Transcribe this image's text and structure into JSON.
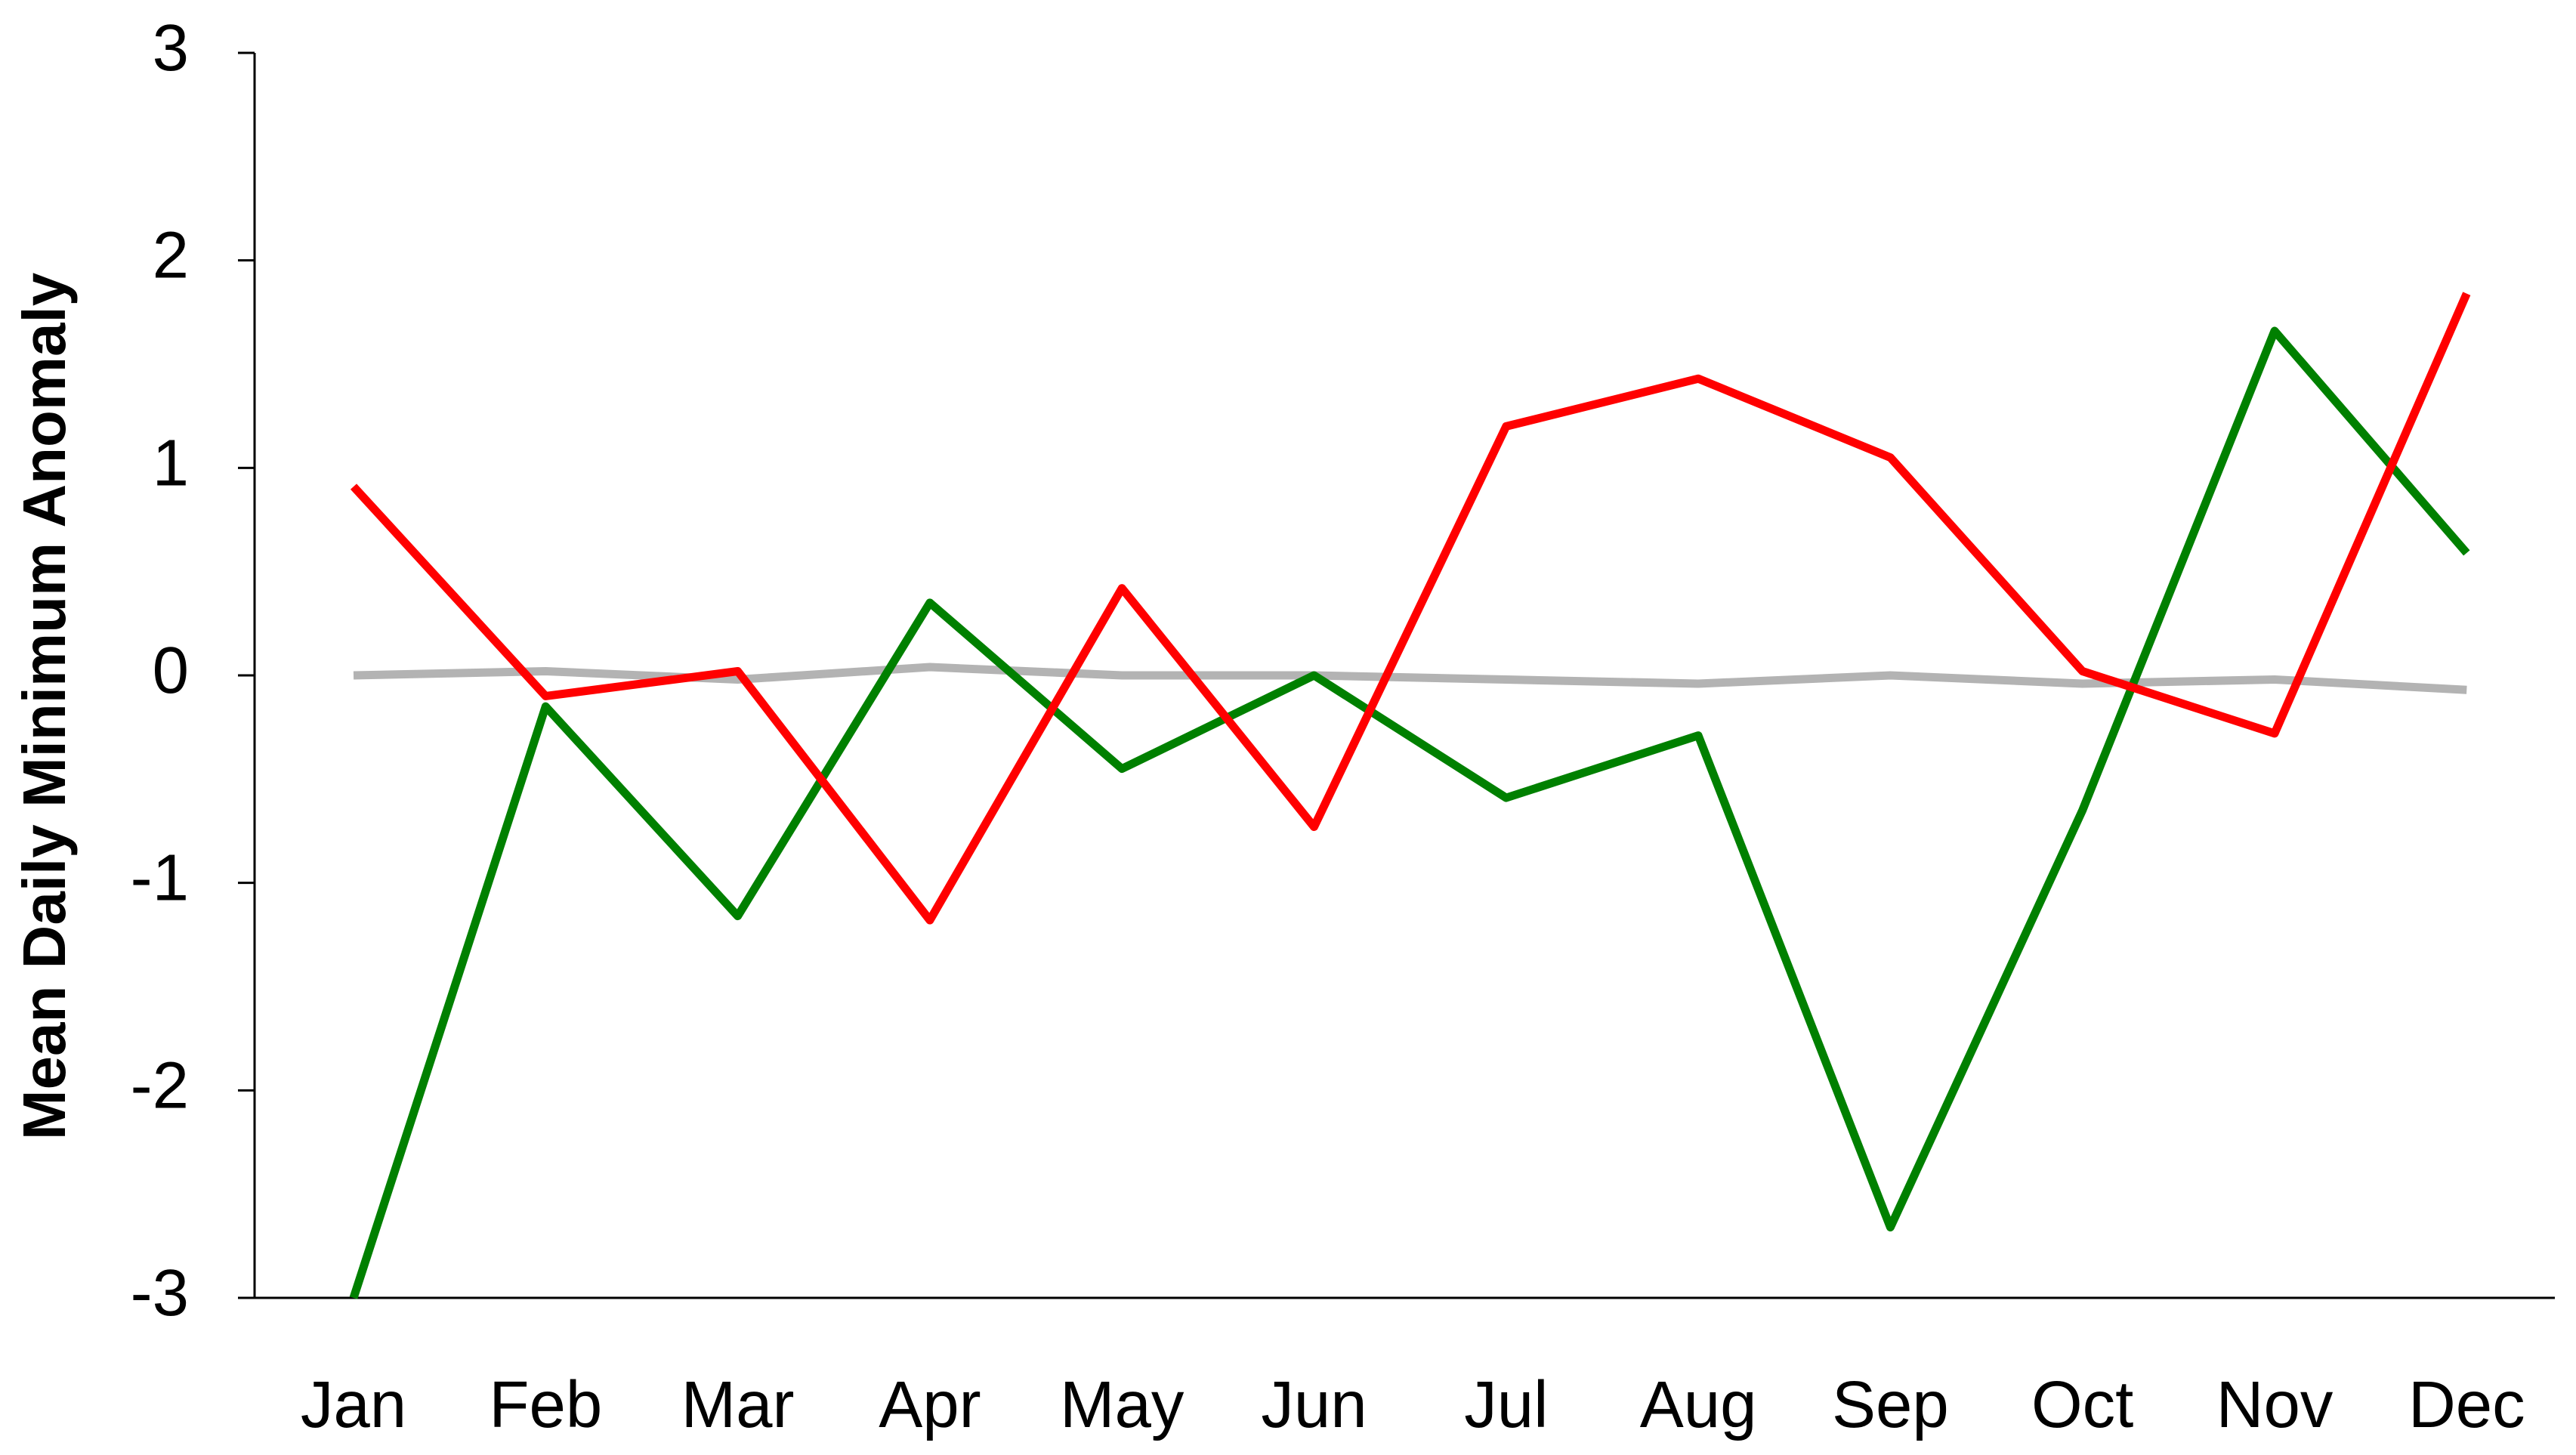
{
  "chart_data": {
    "type": "line",
    "y_label": "Mean Daily Minimum Anomaly",
    "categories": [
      "Jan",
      "Feb",
      "Mar",
      "Apr",
      "May",
      "Jun",
      "Jul",
      "Aug",
      "Sep",
      "Oct",
      "Nov",
      "Dec"
    ],
    "series": [
      {
        "color": "#b3b3b3",
        "values": [
          0,
          0.02,
          -0.02,
          0.04,
          0,
          0,
          -0.02,
          -0.04,
          0,
          -0.04,
          -0.02,
          -0.07
        ]
      },
      {
        "color": "#008000",
        "values": [
          -3.0,
          -0.15,
          -1.16,
          0.35,
          -0.45,
          0.0,
          -0.59,
          -0.29,
          -2.66,
          -0.65,
          1.66,
          0.59
        ]
      },
      {
        "color": "#ff0000",
        "values": [
          0.91,
          -0.1,
          0.02,
          -1.18,
          0.42,
          -0.73,
          1.2,
          1.43,
          1.05,
          0.02,
          -0.28,
          1.84
        ]
      }
    ],
    "ylim": [
      -3,
      3
    ],
    "yticks": [
      -3,
      -2,
      -1,
      0,
      1,
      2,
      3
    ],
    "grid": false
  }
}
